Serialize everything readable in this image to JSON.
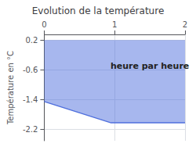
{
  "chart_data": {
    "type": "area",
    "title": "Evolution de la température",
    "y_label": "Température en °C",
    "x": [
      0,
      0.95,
      2.0
    ],
    "values": [
      -1.45,
      -2.02,
      -2.02
    ],
    "fill_to": 0.2,
    "xlim": [
      0,
      2
    ],
    "xticks": [
      0,
      1,
      2
    ],
    "ylim": [
      -2.5,
      0.35
    ],
    "yticks": [
      0.2,
      -0.6,
      -1.4,
      -2.2
    ],
    "grid": true,
    "annotations": [
      {
        "text": "heure par heure",
        "x": 1.5,
        "y": -0.5
      }
    ]
  }
}
